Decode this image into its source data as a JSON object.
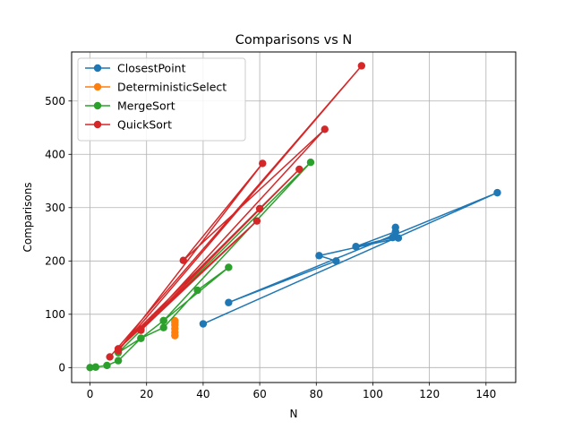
{
  "chart_data": {
    "type": "line",
    "title": "Comparisons vs N",
    "xlabel": "N",
    "ylabel": "Comparisons",
    "xlim": [
      -6.5,
      150.5
    ],
    "ylim": [
      -28,
      592
    ],
    "xticks": [
      0,
      20,
      40,
      60,
      80,
      100,
      120,
      140
    ],
    "yticks": [
      0,
      100,
      200,
      300,
      400,
      500
    ],
    "grid": true,
    "legend_position": "top-left",
    "series": [
      {
        "name": "ClosestPoint",
        "color": "#1f77b4",
        "marker": "circle",
        "x": [
          40,
          144,
          49,
          87,
          81,
          109,
          108,
          107,
          94,
          108
        ],
        "y": [
          82,
          328,
          122,
          200,
          210,
          243,
          263,
          244,
          227,
          255
        ]
      },
      {
        "name": "DeterministicSelect",
        "color": "#ff7f0e",
        "marker": "circle",
        "x": [
          30,
          30,
          30,
          30,
          30,
          30
        ],
        "y": [
          60,
          66,
          73,
          80,
          85,
          88
        ]
      },
      {
        "name": "MergeSort",
        "color": "#2ca02c",
        "marker": "circle",
        "x": [
          0,
          2,
          6,
          10,
          18,
          26,
          38,
          49,
          26,
          78,
          10,
          18,
          26
        ],
        "y": [
          0,
          1,
          4,
          13,
          55,
          75,
          145,
          188,
          88,
          385,
          28,
          55,
          88
        ]
      },
      {
        "name": "QuickSort",
        "color": "#d62728",
        "marker": "circle",
        "x": [
          7,
          96,
          10,
          61,
          33,
          83,
          18,
          74,
          10,
          60,
          18,
          59,
          10
        ],
        "y": [
          20,
          566,
          32,
          383,
          201,
          447,
          72,
          372,
          35,
          298,
          70,
          275,
          35
        ]
      }
    ]
  }
}
